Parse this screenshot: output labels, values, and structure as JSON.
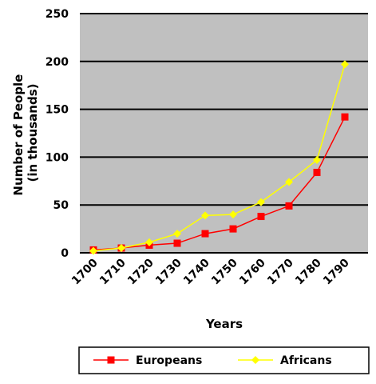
{
  "chart_data": {
    "type": "line",
    "categories": [
      "1700",
      "1710",
      "1720",
      "1730",
      "1740",
      "1750",
      "1760",
      "1770",
      "1780",
      "1790"
    ],
    "series": [
      {
        "name": "Europeans",
        "color": "#ff0000",
        "marker": "square",
        "values": [
          3,
          5,
          8,
          10,
          20,
          25,
          38,
          49,
          84,
          142
        ]
      },
      {
        "name": "Africans",
        "color": "#ffff00",
        "marker": "diamond",
        "values": [
          2,
          5,
          11,
          20,
          39,
          40,
          53,
          74,
          97,
          197
        ]
      }
    ],
    "xlabel": "Years",
    "ylabel_line1": "Number of People",
    "ylabel_line2": "(in thousands)",
    "ylim": [
      0,
      250
    ],
    "yticks": [
      0,
      50,
      100,
      150,
      200,
      250
    ],
    "grid": "horizontal",
    "plot_background": "#c0c0c0",
    "legend_position": "bottom"
  }
}
